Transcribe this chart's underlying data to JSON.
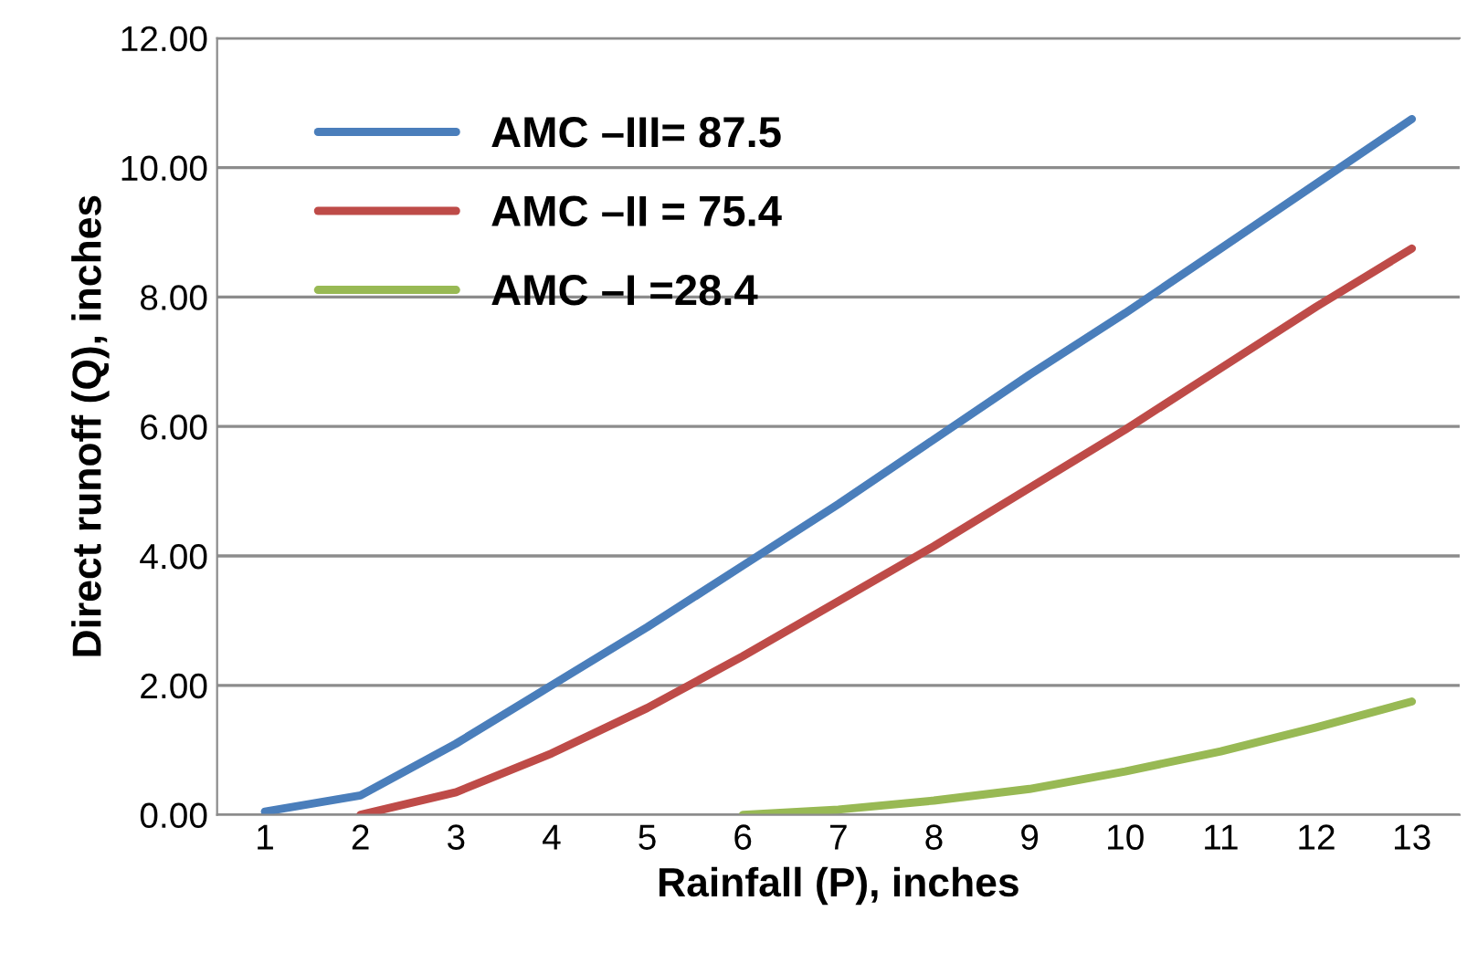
{
  "chart_data": {
    "type": "line",
    "xlabel": "Rainfall (P), inches",
    "ylabel": "Direct runoff (Q), inches",
    "categories": [
      "1",
      "2",
      "3",
      "4",
      "5",
      "6",
      "7",
      "8",
      "9",
      "10",
      "11",
      "12",
      "13"
    ],
    "series": [
      {
        "name": "AMC –III= 87.5",
        "color": "#4a7ebb",
        "values": [
          0.05,
          0.3,
          1.1,
          2.0,
          2.9,
          3.85,
          4.8,
          5.8,
          6.8,
          7.75,
          8.75,
          9.75,
          10.75
        ]
      },
      {
        "name": "AMC –II = 75.4",
        "color": "#be4b48",
        "values": [
          null,
          0.0,
          0.35,
          0.95,
          1.65,
          2.45,
          3.3,
          4.15,
          5.05,
          5.95,
          6.9,
          7.85,
          8.75
        ]
      },
      {
        "name": "AMC –I =28.4",
        "color": "#98b954",
        "values": [
          null,
          null,
          null,
          null,
          null,
          0.0,
          0.08,
          0.22,
          0.4,
          0.67,
          0.98,
          1.35,
          1.75
        ]
      }
    ],
    "ylim": [
      0,
      12
    ],
    "yticks": [
      {
        "value": 0,
        "label": "0.00"
      },
      {
        "value": 2,
        "label": "2.00"
      },
      {
        "value": 4,
        "label": "4.00"
      },
      {
        "value": 6,
        "label": "6.00"
      },
      {
        "value": 8,
        "label": "8.00"
      },
      {
        "value": 10,
        "label": "10.00"
      },
      {
        "value": 12,
        "label": "12.00"
      }
    ],
    "grid": "y",
    "legend": "top left",
    "marker": "none",
    "line_style": "solid"
  }
}
